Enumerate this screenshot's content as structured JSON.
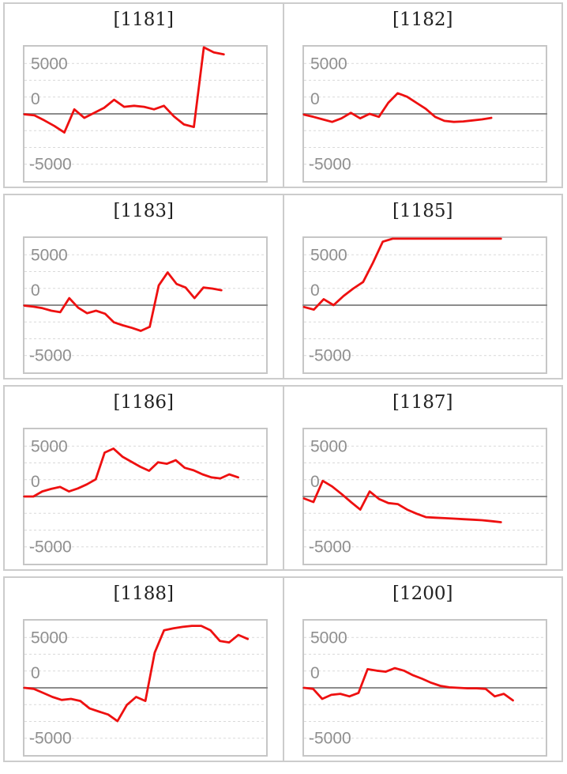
{
  "styles": {
    "line_color": "#ee1010",
    "zero_line_color": "#8c8c8c",
    "grid_color": "#d9d9d9",
    "plot_border_color": "#c6c6c6",
    "panel_border_color": "#cccccc",
    "title_color": "#222222",
    "axis_label_color": "#8f8f8f",
    "background": "#ffffff"
  },
  "axis": {
    "tick_labels": [
      "5000",
      "0",
      "-5000"
    ],
    "y_min": -6667,
    "y_max": 6667,
    "grid_step": 1667,
    "grid_style": "dashed",
    "zero_line": "solid"
  },
  "chart_data": [
    {
      "type": "line",
      "title": "[1181]",
      "ylim": [
        -6667,
        6667
      ],
      "end_frac": 0.83,
      "values": [
        -50,
        -150,
        -650,
        -1200,
        -1850,
        450,
        -400,
        100,
        600,
        1400,
        700,
        800,
        700,
        450,
        800,
        -250,
        -1050,
        -1300,
        6600,
        6100,
        5900
      ]
    },
    {
      "type": "line",
      "title": "[1182]",
      "ylim": [
        -6667,
        6667
      ],
      "end_frac": 0.78,
      "values": [
        -80,
        -300,
        -550,
        -800,
        -450,
        100,
        -450,
        0,
        -300,
        1100,
        2050,
        1700,
        1100,
        500,
        -300,
        -700,
        -800,
        -750,
        -650,
        -550,
        -400
      ]
    },
    {
      "type": "line",
      "title": "[1183]",
      "ylim": [
        -6667,
        6667
      ],
      "end_frac": 0.82,
      "values": [
        -50,
        -150,
        -300,
        -550,
        -700,
        700,
        -250,
        -800,
        -550,
        -850,
        -1700,
        -2000,
        -2250,
        -2550,
        -2150,
        1950,
        3250,
        2100,
        1750,
        700,
        1750,
        1650,
        1480
      ]
    },
    {
      "type": "line",
      "title": "[1185]",
      "ylim": [
        -6667,
        6667
      ],
      "end_frac": 0.82,
      "values": [
        -180,
        -440,
        600,
        0,
        900,
        1650,
        2300,
        4200,
        6300,
        6600,
        6600,
        6600,
        6600,
        6600,
        6600,
        6600,
        6600,
        6600,
        6600,
        6600,
        6600
      ]
    },
    {
      "type": "line",
      "title": "[1186]",
      "ylim": [
        -6667,
        6667
      ],
      "end_frac": 0.89,
      "values": [
        0,
        0,
        500,
        750,
        950,
        500,
        800,
        1200,
        1700,
        4350,
        4750,
        3950,
        3450,
        2950,
        2550,
        3400,
        3250,
        3600,
        2850,
        2600,
        2200,
        1900,
        1800,
        2200,
        1900
      ]
    },
    {
      "type": "line",
      "title": "[1187]",
      "ylim": [
        -6667,
        6667
      ],
      "end_frac": 0.82,
      "values": [
        -200,
        -550,
        1550,
        1000,
        250,
        -550,
        -1300,
        500,
        -250,
        -650,
        -750,
        -1300,
        -1700,
        -2050,
        -2100,
        -2150,
        -2200,
        -2250,
        -2300,
        -2350,
        -2450,
        -2550
      ]
    },
    {
      "type": "line",
      "title": "[1188]",
      "ylim": [
        -6667,
        6667
      ],
      "end_frac": 0.93,
      "values": [
        0,
        -100,
        -500,
        -900,
        -1200,
        -1100,
        -1300,
        -2050,
        -2350,
        -2650,
        -3300,
        -1700,
        -900,
        -1300,
        3500,
        5700,
        5900,
        6050,
        6150,
        6150,
        5700,
        4650,
        4500,
        5250,
        4850
      ]
    },
    {
      "type": "line",
      "title": "[1200]",
      "ylim": [
        -6667,
        6667
      ],
      "end_frac": 0.87,
      "values": [
        0,
        -100,
        -1100,
        -700,
        -600,
        -850,
        -500,
        1850,
        1700,
        1600,
        1950,
        1700,
        1250,
        900,
        500,
        200,
        50,
        0,
        -50,
        -50,
        -100,
        -850,
        -600,
        -1250
      ]
    }
  ]
}
